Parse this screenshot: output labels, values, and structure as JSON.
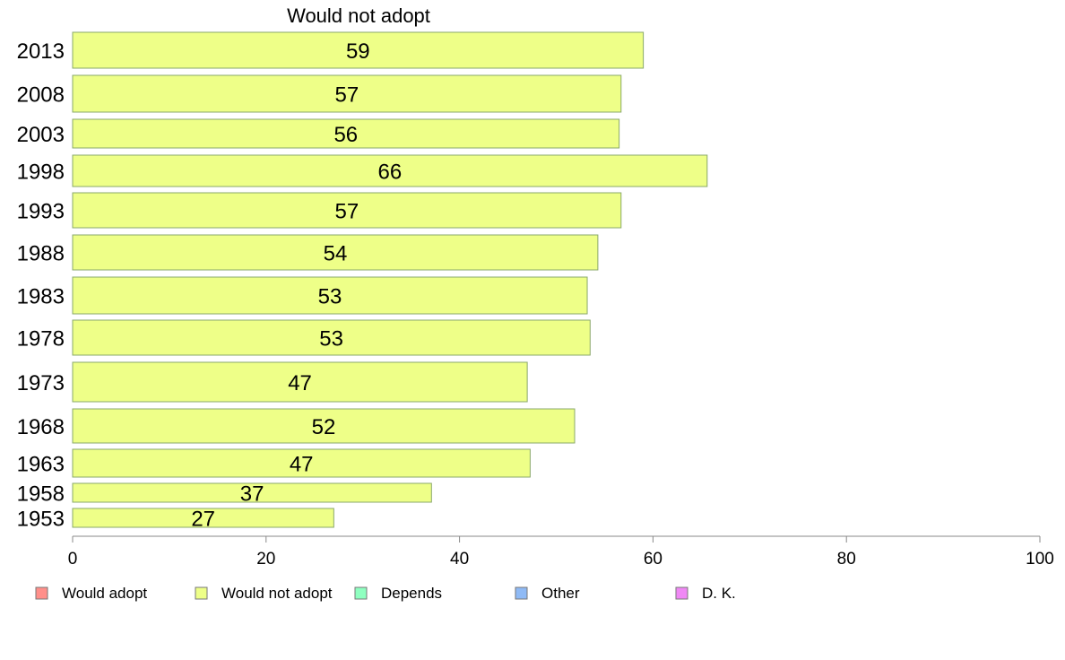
{
  "chart_data": {
    "type": "bar",
    "orientation": "horizontal",
    "title": "Would not adopt",
    "categories": [
      "2013",
      "2008",
      "2003",
      "1998",
      "1993",
      "1988",
      "1983",
      "1978",
      "1973",
      "1968",
      "1963",
      "1958",
      "1953"
    ],
    "series": [
      {
        "name": "Would not adopt",
        "values": [
          59,
          56.7,
          56.5,
          65.6,
          56.7,
          54.3,
          53.2,
          53.5,
          47,
          51.9,
          47.3,
          37.1,
          27
        ]
      }
    ],
    "value_labels": [
      "59",
      "57",
      "56",
      "66",
      "57",
      "54",
      "53",
      "53",
      "47",
      "52",
      "47",
      "37",
      "27"
    ],
    "xlim": [
      0,
      100
    ],
    "x_ticks": [
      "0",
      "20",
      "40",
      "60",
      "80",
      "100"
    ],
    "xlabel": "",
    "ylabel": "",
    "grid": false,
    "legend_position": "bottom",
    "legend": [
      {
        "label": "Would adopt",
        "color": "#ff8f8a"
      },
      {
        "label": "Would not adopt",
        "color": "#eeff88"
      },
      {
        "label": "Depends",
        "color": "#8fffc0"
      },
      {
        "label": "Other",
        "color": "#8fbaf5"
      },
      {
        "label": "D. K.",
        "color": "#f088f5"
      }
    ],
    "bar_color": "#eeff88",
    "bar_edge_color": "#8aa86a",
    "axis_color": "#888888"
  }
}
